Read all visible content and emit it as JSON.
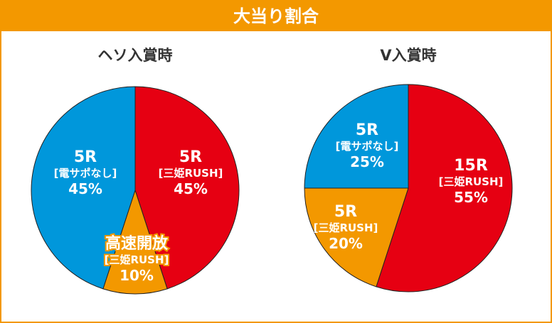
{
  "header": {
    "title": "大当り割合"
  },
  "colors": {
    "red": "#e60012",
    "blue": "#0097db",
    "orange": "#f39800"
  },
  "chart_data": [
    {
      "type": "pie",
      "title": "ヘソ入賞時",
      "slices": [
        {
          "name": "5R",
          "sub": "[三姫RUSH]",
          "value": 45,
          "pct": "45%",
          "color": "#e60012"
        },
        {
          "name": "高速開放",
          "sub": "[三姫RUSH]",
          "value": 10,
          "pct": "10%",
          "color": "#f39800"
        },
        {
          "name": "5R",
          "sub": "[電サポなし]",
          "value": 45,
          "pct": "45%",
          "color": "#0097db"
        }
      ]
    },
    {
      "type": "pie",
      "title": "V入賞時",
      "slices": [
        {
          "name": "15R",
          "sub": "[三姫RUSH]",
          "value": 55,
          "pct": "55%",
          "color": "#e60012"
        },
        {
          "name": "5R",
          "sub": "[三姫RUSH]",
          "value": 20,
          "pct": "20%",
          "color": "#f39800"
        },
        {
          "name": "5R",
          "sub": "[電サポなし]",
          "value": 25,
          "pct": "25%",
          "color": "#0097db"
        }
      ]
    }
  ]
}
